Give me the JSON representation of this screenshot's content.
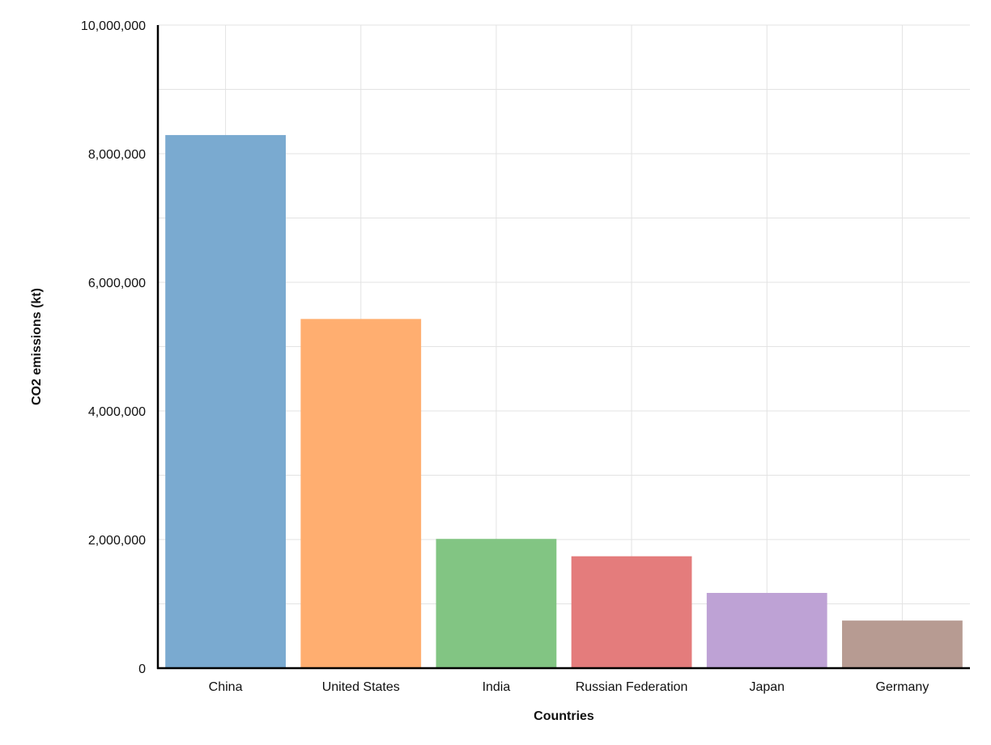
{
  "chart_data": {
    "type": "bar",
    "xlabel": "Countries",
    "ylabel": "CO2 emissions (kt)",
    "categories": [
      "China",
      "United States",
      "India",
      "Russian Federation",
      "Japan",
      "Germany"
    ],
    "values": [
      8290000,
      5430000,
      2010000,
      1740000,
      1170000,
      740000
    ],
    "colors": [
      "#7aaad0",
      "#ffae70",
      "#82c583",
      "#e47c7c",
      "#bea2d5",
      "#b79b92"
    ],
    "ylim": [
      0,
      10000000
    ],
    "yticks": [
      0,
      2000000,
      4000000,
      6000000,
      8000000,
      10000000
    ],
    "ytick_labels": [
      "0",
      "2,000,000",
      "4,000,000",
      "6,000,000",
      "8,000,000",
      "10,000,000"
    ],
    "grid": true
  }
}
